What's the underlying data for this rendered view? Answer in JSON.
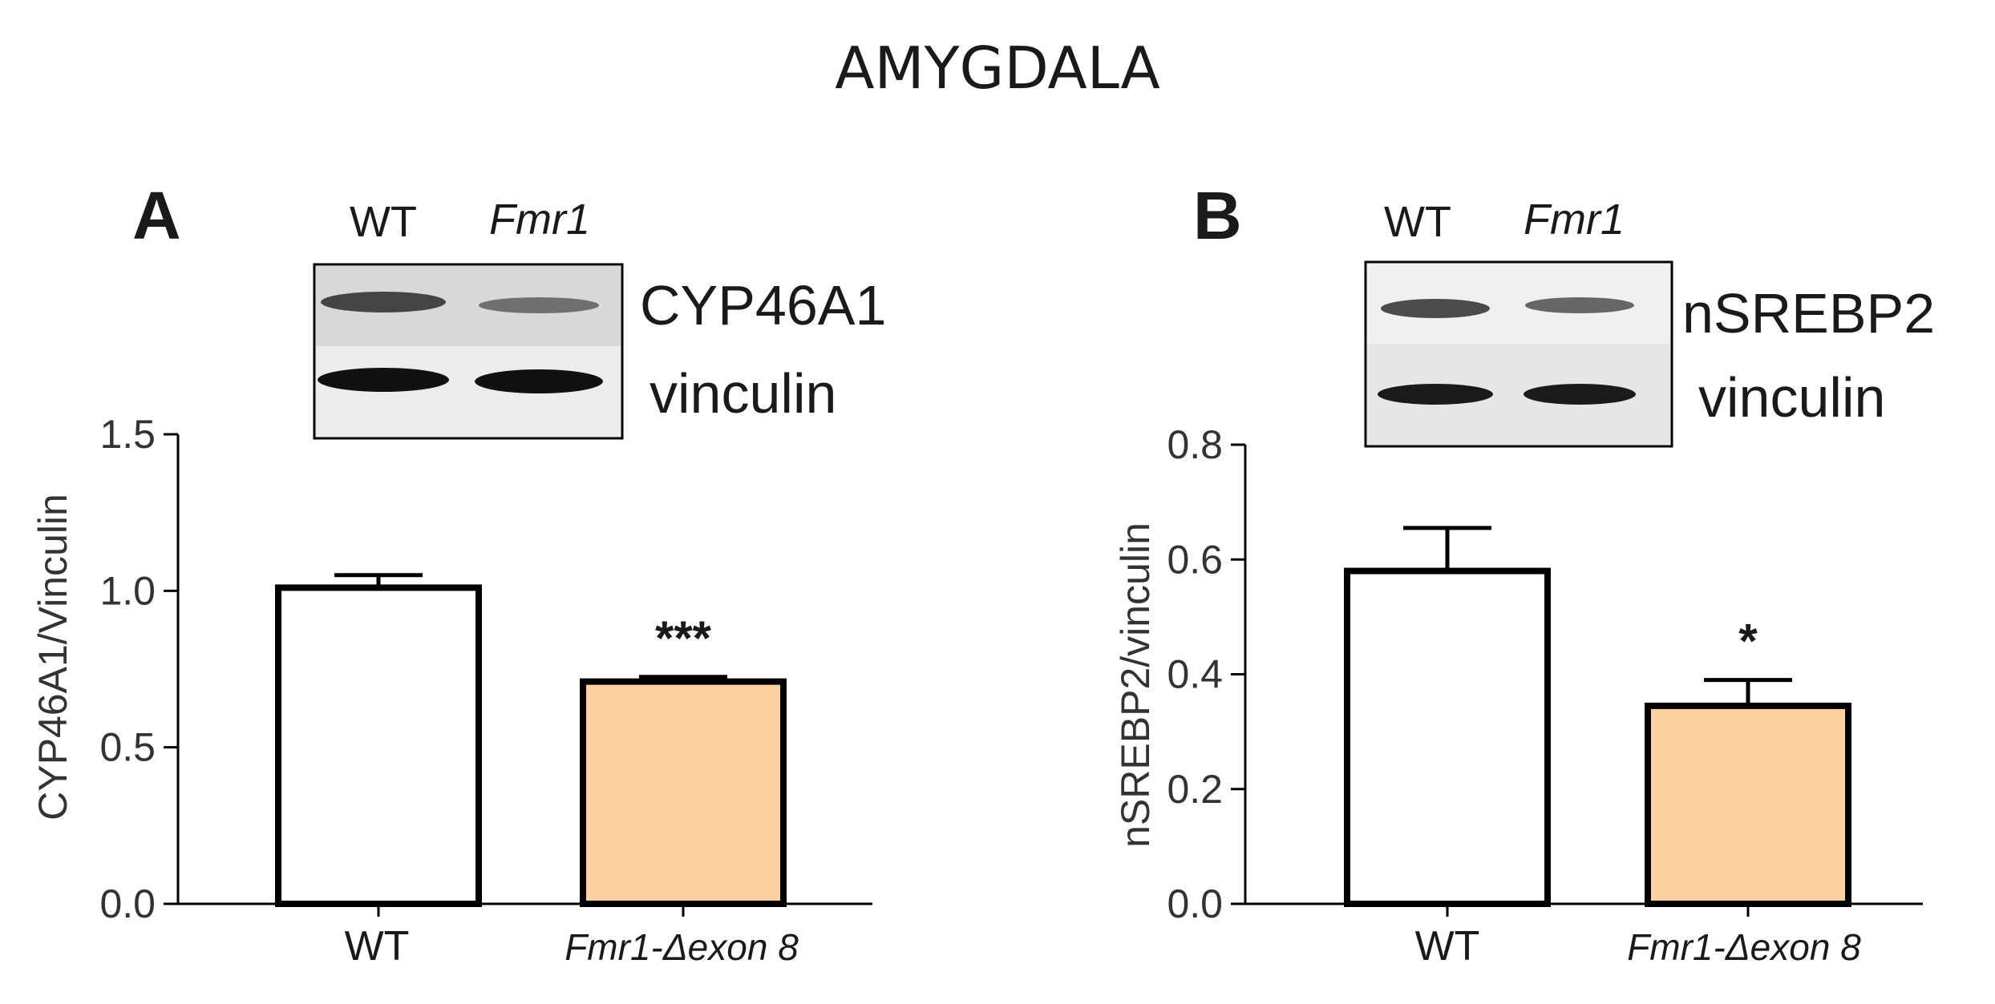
{
  "figure_title": "AMYGDALA",
  "colors": {
    "wt_fill": "#ffffff",
    "ko_fill": "#fcd0a0",
    "stroke": "#000000"
  },
  "chart_data": [
    {
      "type": "bar",
      "panel_label": "A",
      "blot": {
        "lanes": [
          "WT",
          "Fmr1"
        ],
        "proteins": [
          "CYP46A1",
          "vinculin"
        ]
      },
      "categories": [
        "WT",
        "Fmr1-Δexon 8"
      ],
      "values": [
        1.01,
        0.71
      ],
      "errors": [
        0.04,
        0.015
      ],
      "significance": [
        "",
        "***"
      ],
      "ylabel": "CYP46A1/Vinculin",
      "xlabel": "",
      "ylim": [
        0,
        1.5
      ],
      "yticks": [
        "0.0",
        "0.5",
        "1.0",
        "1.5"
      ],
      "ytick_values": [
        0,
        0.5,
        1.0,
        1.5
      ]
    },
    {
      "type": "bar",
      "panel_label": "B",
      "blot": {
        "lanes": [
          "WT",
          "Fmr1"
        ],
        "proteins": [
          "nSREBP2",
          "vinculin"
        ]
      },
      "categories": [
        "WT",
        "Fmr1-Δexon 8"
      ],
      "values": [
        0.58,
        0.345
      ],
      "errors": [
        0.075,
        0.045
      ],
      "significance": [
        "",
        "*"
      ],
      "ylabel": "nSREBP2/vinculin",
      "xlabel": "",
      "ylim": [
        0,
        0.8
      ],
      "yticks": [
        "0.0",
        "0.2",
        "0.4",
        "0.6",
        "0.8"
      ],
      "ytick_values": [
        0,
        0.2,
        0.4,
        0.6,
        0.8
      ]
    }
  ]
}
